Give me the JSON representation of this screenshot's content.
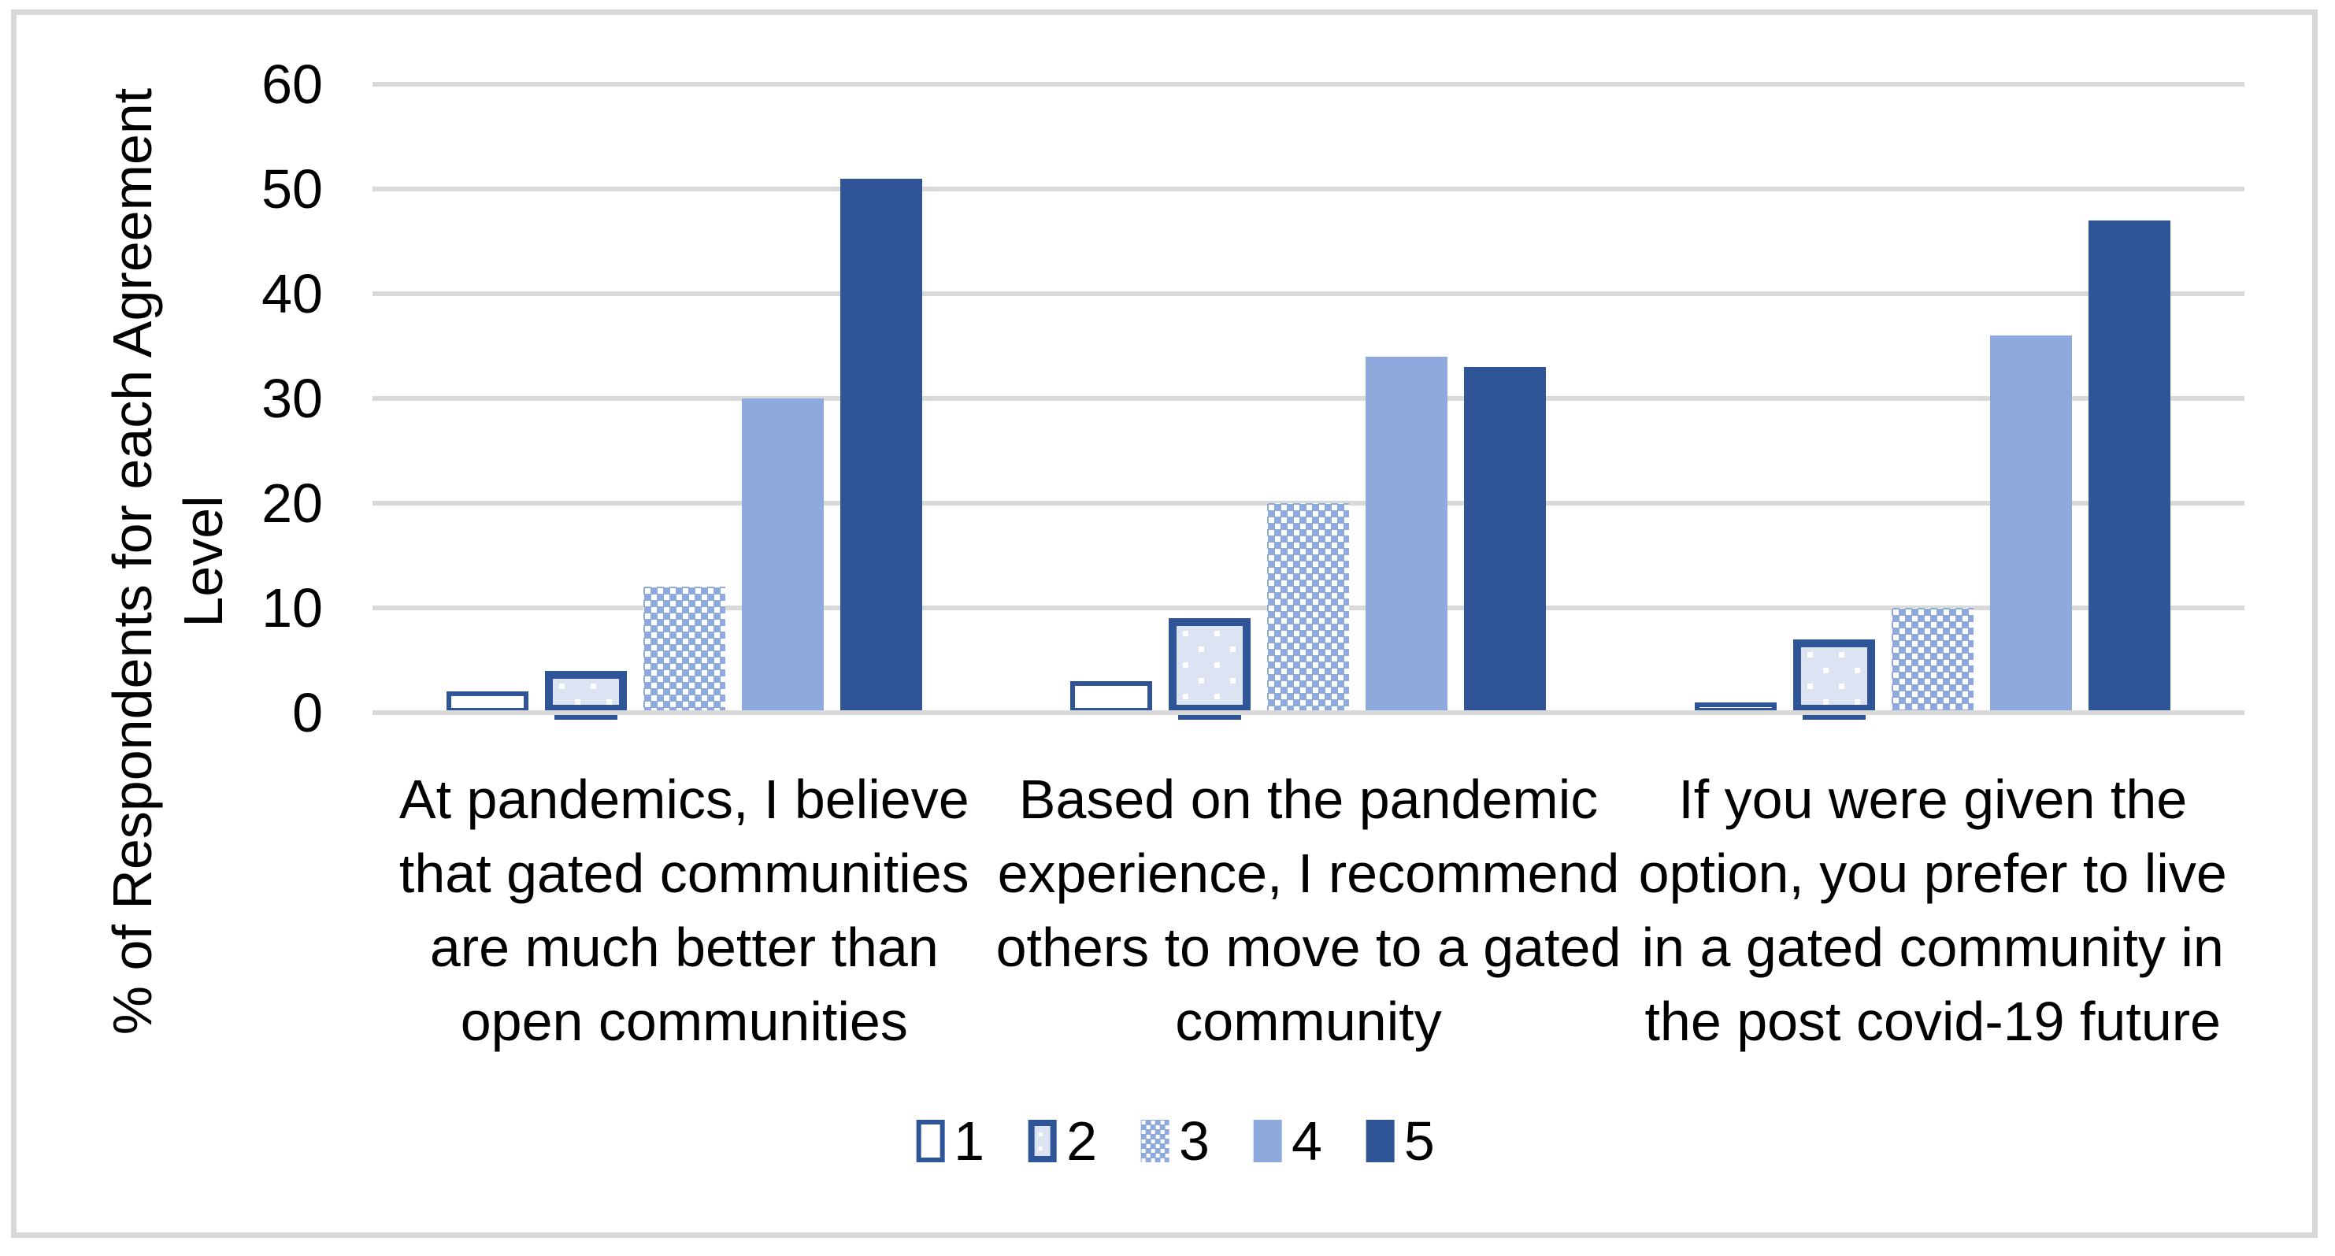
{
  "chart_data": {
    "type": "bar",
    "title": "",
    "ylabel": "% of Respondents for each Agreement Level",
    "ylabel_lines": [
      "% of Respondents for each Agreement",
      "Level"
    ],
    "xlabel": "",
    "ylim": [
      0,
      60
    ],
    "yticks": [
      0,
      10,
      20,
      30,
      40,
      50,
      60
    ],
    "grid": true,
    "legend_position": "bottom-center",
    "categories": [
      "At pandemics, I believe that gated communities are much better than open communities",
      "Based on the pandemic experience, I recommend others to move to a gated community",
      "If you were given the option, you prefer to live in a gated community in the post covid-19 future"
    ],
    "category_lines": [
      [
        "At pandemics, I believe",
        "that gated communities",
        "are much better than",
        "open communities"
      ],
      [
        "Based on the pandemic",
        "experience, I recommend",
        "others to move to a gated",
        "community"
      ],
      [
        "If you were given the",
        "option, you prefer to live",
        "in a gated community in",
        "the post covid-19 future"
      ]
    ],
    "series": [
      {
        "name": "1",
        "style": "white-fill-dark-outline",
        "values": [
          2,
          3,
          1
        ]
      },
      {
        "name": "2",
        "style": "pale-dotted-fill-thick-dark-outline",
        "values": [
          4,
          9,
          7
        ]
      },
      {
        "name": "3",
        "style": "light-blue-white-dot-pattern",
        "values": [
          12,
          20,
          10
        ]
      },
      {
        "name": "4",
        "style": "solid-light-blue",
        "values": [
          30,
          34,
          36
        ]
      },
      {
        "name": "5",
        "style": "solid-dark-blue",
        "values": [
          51,
          33,
          47
        ]
      }
    ],
    "colors": {
      "dark_blue": "#2F5597",
      "light_blue": "#8EA9DB",
      "pale_blue_fill": "#DCE4F4",
      "gridline_gray": "#D9D9D9",
      "text": "#000000",
      "background": "#FFFFFF"
    }
  }
}
